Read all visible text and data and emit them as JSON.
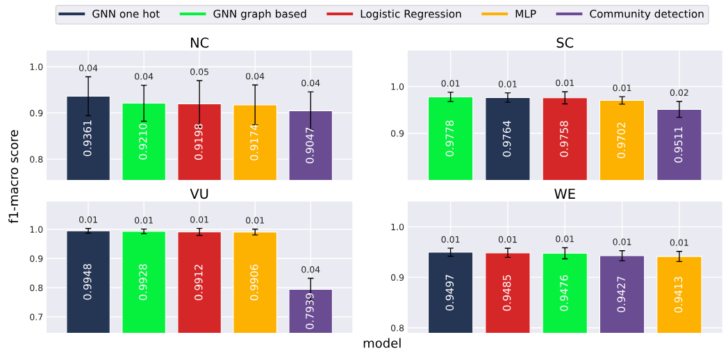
{
  "chart_data": [
    {
      "type": "bar",
      "title": "NC",
      "ylabel": "f1-macro score",
      "categories": [
        null,
        null,
        null,
        null,
        null
      ],
      "ylim": [
        0.755,
        1.035
      ],
      "yticks": [
        {
          "value": 0.8,
          "label": "0.8"
        },
        {
          "value": 0.9,
          "label": "0.9"
        },
        {
          "value": 1.0,
          "label": "1.0"
        }
      ],
      "grid": true,
      "legend": "top",
      "annotations": [
        "0.04",
        "0.04",
        "0.05",
        "0.04",
        "0.04"
      ],
      "series": [
        {
          "name": "GNN one hot",
          "color": "#253655",
          "values": [
            0.9361,
            null,
            null,
            null,
            null
          ],
          "value_labels": [
            "0.9361",
            null,
            null,
            null,
            null
          ],
          "errors": [
            0.042,
            null,
            null,
            null,
            null
          ]
        },
        {
          "name": "GNN graph based",
          "color": "#05f13d",
          "values": [
            null,
            0.921,
            null,
            null,
            null
          ],
          "value_labels": [
            null,
            "0.9210",
            null,
            null,
            null
          ],
          "errors": [
            null,
            0.039,
            null,
            null,
            null
          ]
        },
        {
          "name": "Logistic Regression",
          "color": "#d62728",
          "values": [
            null,
            null,
            0.9198,
            null,
            null
          ],
          "value_labels": [
            null,
            null,
            "0.9198",
            null,
            null
          ],
          "errors": [
            null,
            null,
            0.05,
            null,
            null
          ]
        },
        {
          "name": "MLP",
          "color": "#fdb100",
          "values": [
            null,
            null,
            null,
            0.9174,
            null
          ],
          "value_labels": [
            null,
            null,
            null,
            "0.9174",
            null
          ],
          "errors": [
            null,
            null,
            null,
            0.043,
            null
          ]
        },
        {
          "name": "Community detection",
          "color": "#6a4c93",
          "values": [
            null,
            null,
            null,
            null,
            0.9047
          ],
          "value_labels": [
            null,
            null,
            null,
            null,
            "0.9047"
          ],
          "errors": [
            null,
            null,
            null,
            null,
            0.041
          ]
        }
      ]
    },
    {
      "type": "bar",
      "title": "SC",
      "categories": [
        null,
        null,
        null,
        null,
        null
      ],
      "ylim": [
        0.8,
        1.077
      ],
      "yticks": [
        {
          "value": 0.9,
          "label": "0.9"
        },
        {
          "value": 1.0,
          "label": "1.0"
        }
      ],
      "grid": true,
      "annotations": [
        "0.01",
        "0.01",
        "0.01",
        "0.01",
        "0.02"
      ],
      "series": [
        {
          "color": "#05f13d",
          "values": [
            0.9778,
            null,
            null,
            null,
            null
          ],
          "value_labels": [
            "0.9778",
            null,
            null,
            null,
            null
          ],
          "errors": [
            0.01,
            null,
            null,
            null,
            null
          ]
        },
        {
          "color": "#253655",
          "values": [
            null,
            0.9764,
            null,
            null,
            null
          ],
          "value_labels": [
            null,
            "0.9764",
            null,
            null,
            null
          ],
          "errors": [
            null,
            0.01,
            null,
            null,
            null
          ]
        },
        {
          "color": "#d62728",
          "values": [
            null,
            null,
            0.9758,
            null,
            null
          ],
          "value_labels": [
            null,
            null,
            "0.9758",
            null,
            null
          ],
          "errors": [
            null,
            null,
            0.013,
            null,
            null
          ]
        },
        {
          "color": "#fdb100",
          "values": [
            null,
            null,
            null,
            0.9702,
            null
          ],
          "value_labels": [
            null,
            null,
            null,
            "0.9702",
            null
          ],
          "errors": [
            null,
            null,
            null,
            0.008,
            null
          ]
        },
        {
          "color": "#6a4c93",
          "values": [
            null,
            null,
            null,
            null,
            0.9511
          ],
          "value_labels": [
            null,
            null,
            null,
            null,
            "0.9511"
          ],
          "errors": [
            null,
            null,
            null,
            null,
            0.017
          ]
        }
      ]
    },
    {
      "type": "bar",
      "title": "VU",
      "xlabel": "model",
      "categories": [
        null,
        null,
        null,
        null,
        null
      ],
      "ylim": [
        0.645,
        1.095
      ],
      "yticks": [
        {
          "value": 0.7,
          "label": "0.7"
        },
        {
          "value": 0.8,
          "label": "0.8"
        },
        {
          "value": 0.9,
          "label": "0.9"
        },
        {
          "value": 1.0,
          "label": "1.0"
        }
      ],
      "grid": true,
      "annotations": [
        "0.01",
        "0.01",
        "0.01",
        "0.01",
        "0.04"
      ],
      "series": [
        {
          "color": "#253655",
          "values": [
            0.9948,
            null,
            null,
            null,
            null
          ],
          "value_labels": [
            "0.9948",
            null,
            null,
            null,
            null
          ],
          "errors": [
            0.008,
            null,
            null,
            null,
            null
          ]
        },
        {
          "color": "#05f13d",
          "values": [
            null,
            0.9928,
            null,
            null,
            null
          ],
          "value_labels": [
            null,
            "0.9928",
            null,
            null,
            null
          ],
          "errors": [
            null,
            0.008,
            null,
            null,
            null
          ]
        },
        {
          "color": "#d62728",
          "values": [
            null,
            null,
            0.9912,
            null,
            null
          ],
          "value_labels": [
            null,
            null,
            "0.9912",
            null,
            null
          ],
          "errors": [
            null,
            null,
            0.012,
            null,
            null
          ]
        },
        {
          "color": "#fdb100",
          "values": [
            null,
            null,
            null,
            0.9906,
            null
          ],
          "value_labels": [
            null,
            null,
            null,
            "0.9906",
            null
          ],
          "errors": [
            null,
            null,
            null,
            0.01,
            null
          ]
        },
        {
          "color": "#6a4c93",
          "values": [
            null,
            null,
            null,
            null,
            0.7939
          ],
          "value_labels": [
            null,
            null,
            null,
            null,
            "0.7939"
          ],
          "errors": [
            null,
            null,
            null,
            null,
            0.038
          ]
        }
      ]
    },
    {
      "type": "bar",
      "title": "WE",
      "categories": [
        null,
        null,
        null,
        null,
        null
      ],
      "ylim": [
        0.79,
        1.05
      ],
      "yticks": [
        {
          "value": 0.8,
          "label": "0.8"
        },
        {
          "value": 0.9,
          "label": "0.9"
        },
        {
          "value": 1.0,
          "label": "1.0"
        }
      ],
      "grid": true,
      "annotations": [
        "0.01",
        "0.01",
        "0.01",
        "0.01",
        "0.01"
      ],
      "series": [
        {
          "color": "#253655",
          "values": [
            0.9497,
            null,
            null,
            null,
            null
          ],
          "value_labels": [
            "0.9497",
            null,
            null,
            null,
            null
          ],
          "errors": [
            0.008,
            null,
            null,
            null,
            null
          ]
        },
        {
          "color": "#d62728",
          "values": [
            null,
            0.9485,
            null,
            null,
            null
          ],
          "value_labels": [
            null,
            "0.9485",
            null,
            null,
            null
          ],
          "errors": [
            null,
            0.009,
            null,
            null,
            null
          ]
        },
        {
          "color": "#05f13d",
          "values": [
            null,
            null,
            0.9476,
            null,
            null
          ],
          "value_labels": [
            null,
            null,
            "0.9476",
            null,
            null
          ],
          "errors": [
            null,
            null,
            0.011,
            null,
            null
          ]
        },
        {
          "color": "#6a4c93",
          "values": [
            null,
            null,
            null,
            0.9427,
            null
          ],
          "value_labels": [
            null,
            null,
            null,
            "0.9427",
            null
          ],
          "errors": [
            null,
            null,
            null,
            0.01,
            null
          ]
        },
        {
          "color": "#fdb100",
          "values": [
            null,
            null,
            null,
            null,
            0.9413
          ],
          "value_labels": [
            null,
            null,
            null,
            null,
            "0.9413"
          ],
          "errors": [
            null,
            null,
            null,
            null,
            0.01
          ]
        }
      ]
    }
  ]
}
